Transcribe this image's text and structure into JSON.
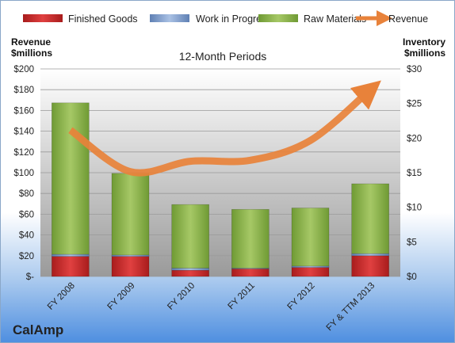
{
  "company": "CalAmp",
  "chart_data": {
    "type": "bar",
    "title": "12-Month Periods",
    "left_axis_label": [
      "Revenue",
      "$millions"
    ],
    "right_axis_label": [
      "Inventory",
      "$millions"
    ],
    "categories": [
      "FY 2008",
      "FY 2009",
      "FY 2010",
      "FY 2011",
      "FY 2012",
      "FY & TTM 2013"
    ],
    "stacked": true,
    "series": [
      {
        "name": "Finished Goods",
        "axis": "right",
        "color": "#cc2a2a",
        "values": [
          2.9,
          2.9,
          0.9,
          1.1,
          1.3,
          3.0
        ]
      },
      {
        "name": "Work in Progress",
        "axis": "right",
        "color": "#7f9fce",
        "values": [
          0.3,
          0.2,
          0.3,
          0.1,
          0.2,
          0.3
        ]
      },
      {
        "name": "Raw Materials",
        "axis": "right",
        "color": "#8db04a",
        "values": [
          21.9,
          11.8,
          9.2,
          8.5,
          8.4,
          10.1
        ]
      },
      {
        "name": "Revenue",
        "type": "line",
        "axis": "left",
        "color": "#e8823a",
        "values": [
          141,
          101,
          111,
          112,
          131,
          180
        ]
      }
    ],
    "y_left": {
      "range": [
        0,
        200
      ],
      "ticks": [
        "$-",
        "$20",
        "$40",
        "$60",
        "$80",
        "$100",
        "$120",
        "$140",
        "$160",
        "$180",
        "$200"
      ]
    },
    "y_right": {
      "range": [
        0,
        30
      ],
      "ticks": [
        "$0",
        "$5",
        "$10",
        "$15",
        "$20",
        "$25",
        "$30"
      ]
    },
    "legend_position": "top",
    "grid": true
  }
}
